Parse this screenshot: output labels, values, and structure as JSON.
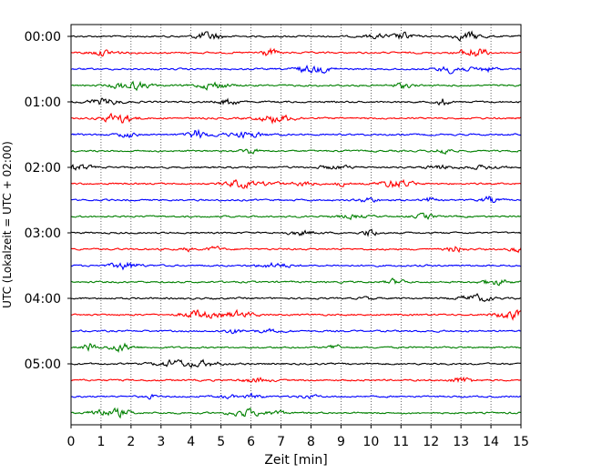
{
  "chart_data": {
    "type": "line",
    "title": "",
    "xlabel": "Zeit  [min]",
    "ylabel": "UTC (Lokalzeit = UTC + 02:00)",
    "xlim": [
      0,
      15
    ],
    "x_ticks": [
      "0",
      "1",
      "2",
      "3",
      "4",
      "5",
      "6",
      "7",
      "8",
      "9",
      "10",
      "11",
      "12",
      "13",
      "14",
      "15"
    ],
    "y_ticks": [
      "00:00",
      "01:00",
      "02:00",
      "03:00",
      "04:00",
      "05:00"
    ],
    "grid": "vertical dotted",
    "legend": "none",
    "trace_colors": [
      "#000000",
      "#ff0000",
      "#0000ff",
      "#008000"
    ],
    "traces": [
      {
        "start": "00:00",
        "color": "#000000"
      },
      {
        "start": "00:15",
        "color": "#ff0000"
      },
      {
        "start": "00:30",
        "color": "#0000ff"
      },
      {
        "start": "00:45",
        "color": "#008000"
      },
      {
        "start": "01:00",
        "color": "#000000"
      },
      {
        "start": "01:15",
        "color": "#ff0000"
      },
      {
        "start": "01:30",
        "color": "#0000ff"
      },
      {
        "start": "01:45",
        "color": "#008000"
      },
      {
        "start": "02:00",
        "color": "#000000"
      },
      {
        "start": "02:15",
        "color": "#ff0000"
      },
      {
        "start": "02:30",
        "color": "#0000ff"
      },
      {
        "start": "02:45",
        "color": "#008000"
      },
      {
        "start": "03:00",
        "color": "#000000"
      },
      {
        "start": "03:15",
        "color": "#ff0000"
      },
      {
        "start": "03:30",
        "color": "#0000ff"
      },
      {
        "start": "03:45",
        "color": "#008000"
      },
      {
        "start": "04:00",
        "color": "#000000"
      },
      {
        "start": "04:15",
        "color": "#ff0000"
      },
      {
        "start": "04:30",
        "color": "#0000ff"
      },
      {
        "start": "04:45",
        "color": "#008000"
      },
      {
        "start": "05:00",
        "color": "#000000"
      },
      {
        "start": "05:15",
        "color": "#ff0000"
      },
      {
        "start": "05:30",
        "color": "#0000ff"
      },
      {
        "start": "05:45",
        "color": "#008000"
      }
    ]
  }
}
